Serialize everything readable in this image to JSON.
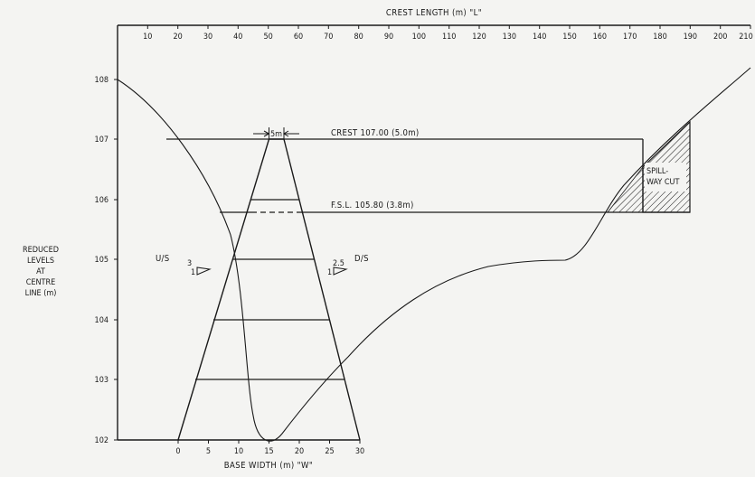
{
  "top_axis": {
    "title": "CREST LENGTH (m) \"L\"",
    "ticks": [
      "10",
      "20",
      "30",
      "40",
      "50",
      "60",
      "70",
      "80",
      "90",
      "100",
      "110",
      "120",
      "130",
      "140",
      "150",
      "160",
      "170",
      "180",
      "190",
      "200",
      "210"
    ]
  },
  "bottom_axis": {
    "title": "BASE WIDTH (m) \"W\"",
    "ticks": [
      "0",
      "5",
      "10",
      "15",
      "20",
      "25",
      "30"
    ]
  },
  "left_axis": {
    "title_lines": [
      "REDUCED",
      "LEVELS",
      "AT",
      "CENTRE",
      "LINE (m)"
    ],
    "ticks": [
      "108",
      "107",
      "106",
      "105",
      "104",
      "103",
      "102"
    ]
  },
  "annotations": {
    "crest": "CREST 107.00 (5.0m)",
    "fsl": "F.S.L. 105.80 (3.8m)",
    "spillway_line1": "SPILL-",
    "spillway_line2": "WAY CUT",
    "crest_width": "5m",
    "us_label": "U/S",
    "us_slope_top": "3",
    "us_slope_side": "1",
    "ds_label": "D/S",
    "ds_slope_top": "2.5",
    "ds_slope_side": "1"
  }
}
